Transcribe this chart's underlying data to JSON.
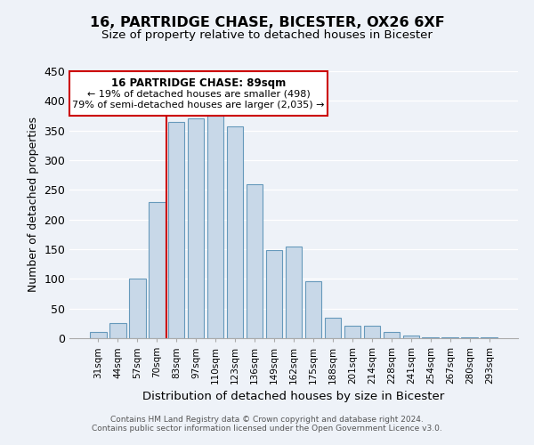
{
  "title": "16, PARTRIDGE CHASE, BICESTER, OX26 6XF",
  "subtitle": "Size of property relative to detached houses in Bicester",
  "xlabel": "Distribution of detached houses by size in Bicester",
  "ylabel": "Number of detached properties",
  "categories": [
    "31sqm",
    "44sqm",
    "57sqm",
    "70sqm",
    "83sqm",
    "97sqm",
    "110sqm",
    "123sqm",
    "136sqm",
    "149sqm",
    "162sqm",
    "175sqm",
    "188sqm",
    "201sqm",
    "214sqm",
    "228sqm",
    "241sqm",
    "254sqm",
    "267sqm",
    "280sqm",
    "293sqm"
  ],
  "values": [
    10,
    25,
    100,
    230,
    365,
    370,
    375,
    357,
    260,
    148,
    155,
    96,
    34,
    21,
    21,
    11,
    4,
    2,
    2,
    1,
    1
  ],
  "bar_color": "#c8d8e8",
  "bar_edge_color": "#6699bb",
  "highlight_index": 4,
  "highlight_line_color": "#cc0000",
  "ylim": [
    0,
    450
  ],
  "yticks": [
    0,
    50,
    100,
    150,
    200,
    250,
    300,
    350,
    400,
    450
  ],
  "annotation_title": "16 PARTRIDGE CHASE: 89sqm",
  "annotation_line1": "← 19% of detached houses are smaller (498)",
  "annotation_line2": "79% of semi-detached houses are larger (2,035) →",
  "annotation_box_edge": "#cc0000",
  "footnote1": "Contains HM Land Registry data © Crown copyright and database right 2024.",
  "footnote2": "Contains public sector information licensed under the Open Government Licence v3.0.",
  "background_color": "#eef2f8",
  "plot_background": "#eef2f8",
  "grid_color": "#ffffff"
}
